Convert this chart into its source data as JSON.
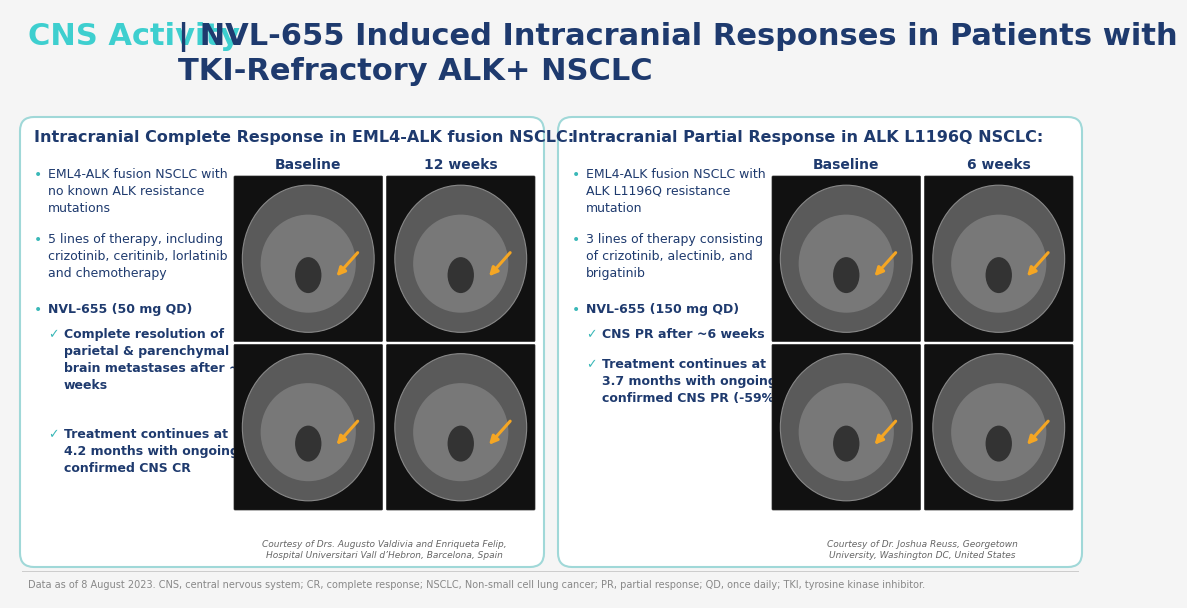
{
  "bg_color": "#f5f5f5",
  "title_part1": "CNS Activity",
  "title_part2": "| NVL-655 Induced Intracranial Responses in Patients with\nTKI-Refractory ALK+ NSCLC",
  "title_color1": "#3ecfcf",
  "title_color2": "#1e3a6e",
  "panel1_title": "Intracranial Complete Response in EML4-ALK fusion NSCLC:",
  "panel1_bullet1": "EML4-ALK fusion NSCLC with\nno known ALK resistance\nmutations",
  "panel1_bullet2": "5 lines of therapy, including\ncrizotinib, ceritinib, lorlatinib\nand chemotherapy",
  "panel1_bullet3": "NVL-655 (50 mg QD)",
  "panel1_sub1": "Complete resolution of\nparietal & parenchymal\nbrain metastases after ~5\nweeks",
  "panel1_sub2": "Treatment continues at\n4.2 months with ongoing\nconfirmed CNS CR",
  "panel1_label1": "Baseline",
  "panel1_label2": "12 weeks",
  "panel1_credit": "Courtesy of Drs. Augusto Valdivia and Enriqueta Felip,\nHospital Universitari Vall d’Hebron, Barcelona, Spain",
  "panel2_title": "Intracranial Partial Response in ALK L1196Q NSCLC:",
  "panel2_bullet1": "EML4-ALK fusion NSCLC with\nALK L1196Q resistance\nmutation",
  "panel2_bullet2": "3 lines of therapy consisting\nof crizotinib, alectinib, and\nbrigatinib",
  "panel2_bullet3": "NVL-655 (150 mg QD)",
  "panel2_sub1": "CNS PR after ~6 weeks",
  "panel2_sub2": "Treatment continues at\n3.7 months with ongoing\nconfirmed CNS PR (-59%)",
  "panel2_label1": "Baseline",
  "panel2_label2": "6 weeks",
  "panel2_credit": "Courtesy of Dr. Joshua Reuss, Georgetown\nUniversity, Washington DC, United States",
  "footer": "Data as of 8 August 2023. CNS, central nervous system; CR, complete response; NSCLC, Non-small cell lung cancer; PR, partial response; QD, once daily; TKI, tyrosine kinase inhibitor.",
  "panel_bg": "#ffffff",
  "panel_border": "#a0d8d8",
  "text_dark": "#1e3a6e",
  "bullet_teal": "#3ab8b8",
  "check_teal": "#3ab8b8",
  "img_bg": "#111111",
  "footer_color": "#888888",
  "footer_line_color": "#cccccc"
}
